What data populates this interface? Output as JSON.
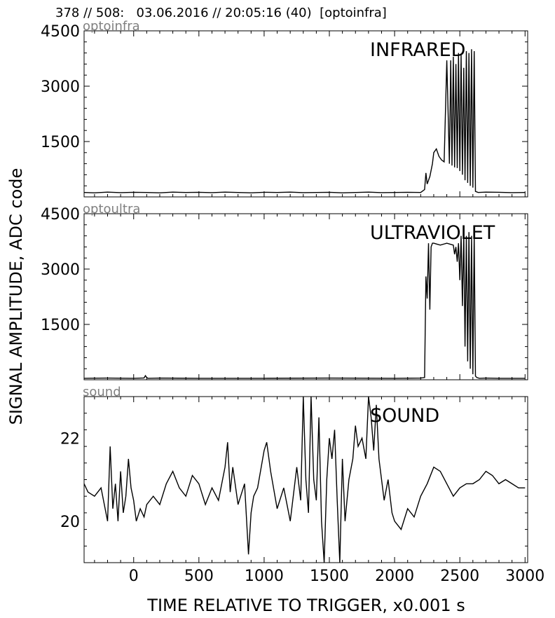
{
  "header": "378 // 508:   03.06.2016 // 20:05:16 (40)  [optoinfra]",
  "ylabel": "SIGNAL AMPLITUDE,  ADC code",
  "xlabel": "TIME RELATIVE TO TRIGGER,   x0.001 s",
  "x_ticks": [
    0,
    500,
    1000,
    1500,
    2000,
    2500,
    3000
  ],
  "chart_data": [
    {
      "type": "line",
      "corner_label": "optoinfra",
      "title": "INFRARED",
      "xlim": [
        -380,
        3020
      ],
      "ylim": [
        0,
        4500
      ],
      "yticks": [
        1500,
        3000,
        4500
      ],
      "x": [
        -380,
        -300,
        -200,
        -100,
        0,
        100,
        200,
        300,
        400,
        500,
        600,
        700,
        800,
        900,
        1000,
        1100,
        1200,
        1300,
        1400,
        1500,
        1600,
        1700,
        1800,
        1900,
        2000,
        2100,
        2200,
        2230,
        2240,
        2250,
        2270,
        2290,
        2300,
        2320,
        2340,
        2360,
        2380,
        2400,
        2420,
        2430,
        2440,
        2450,
        2460,
        2470,
        2480,
        2490,
        2500,
        2510,
        2520,
        2530,
        2540,
        2550,
        2560,
        2570,
        2580,
        2590,
        2600,
        2610,
        2620,
        2640,
        2700,
        2800,
        2900,
        3000
      ],
      "values": [
        120,
        110,
        130,
        115,
        125,
        120,
        110,
        130,
        120,
        125,
        115,
        130,
        120,
        110,
        125,
        120,
        130,
        115,
        120,
        125,
        110,
        120,
        130,
        115,
        120,
        125,
        120,
        200,
        650,
        350,
        550,
        900,
        1200,
        1300,
        1100,
        1000,
        950,
        3700,
        900,
        3700,
        850,
        3800,
        800,
        3600,
        780,
        3900,
        700,
        3850,
        600,
        3500,
        450,
        3950,
        380,
        3900,
        300,
        4000,
        250,
        3950,
        150,
        120,
        130,
        125,
        115,
        120
      ]
    },
    {
      "type": "line",
      "corner_label": "optoultra",
      "title": "ULTRAVIOLET",
      "xlim": [
        -380,
        3020
      ],
      "ylim": [
        0,
        4500
      ],
      "yticks": [
        1500,
        3000,
        4500
      ],
      "x": [
        -380,
        -200,
        0,
        80,
        90,
        100,
        110,
        200,
        500,
        1000,
        1500,
        2000,
        2200,
        2230,
        2240,
        2250,
        2260,
        2270,
        2280,
        2290,
        2300,
        2320,
        2350,
        2400,
        2450,
        2460,
        2470,
        2480,
        2490,
        2500,
        2510,
        2520,
        2530,
        2540,
        2550,
        2560,
        2570,
        2580,
        2590,
        2600,
        2610,
        2620,
        2630,
        2650,
        2700,
        2800,
        3000
      ],
      "values": [
        40,
        45,
        40,
        50,
        110,
        60,
        40,
        45,
        40,
        40,
        45,
        40,
        45,
        60,
        2800,
        2200,
        3700,
        1900,
        3600,
        3700,
        3700,
        3680,
        3650,
        3700,
        3650,
        3400,
        3600,
        3200,
        3700,
        2700,
        3900,
        2000,
        3950,
        900,
        3900,
        500,
        4000,
        300,
        3900,
        150,
        3950,
        100,
        60,
        40,
        45,
        40,
        40
      ]
    },
    {
      "type": "line",
      "corner_label": "sound",
      "title": "SOUND",
      "xlim": [
        -380,
        3020
      ],
      "ylim": [
        19,
        23
      ],
      "yticks": [
        20,
        22
      ],
      "x": [
        -380,
        -350,
        -300,
        -250,
        -200,
        -180,
        -160,
        -140,
        -120,
        -100,
        -80,
        -60,
        -40,
        -20,
        0,
        20,
        50,
        80,
        100,
        150,
        200,
        250,
        300,
        350,
        400,
        450,
        500,
        550,
        600,
        650,
        700,
        720,
        740,
        760,
        800,
        850,
        880,
        900,
        920,
        950,
        1000,
        1020,
        1050,
        1100,
        1150,
        1200,
        1250,
        1280,
        1300,
        1320,
        1340,
        1360,
        1380,
        1400,
        1420,
        1440,
        1460,
        1480,
        1500,
        1520,
        1540,
        1560,
        1580,
        1600,
        1620,
        1650,
        1680,
        1700,
        1720,
        1750,
        1780,
        1800,
        1820,
        1840,
        1860,
        1880,
        1900,
        1920,
        1950,
        1980,
        2000,
        2050,
        2100,
        2150,
        2200,
        2250,
        2300,
        2350,
        2400,
        2450,
        2500,
        2550,
        2600,
        2650,
        2700,
        2750,
        2800,
        2850,
        2900,
        2950,
        3000
      ],
      "values": [
        20.9,
        20.7,
        20.6,
        20.8,
        20.0,
        21.8,
        20.3,
        20.9,
        20.0,
        21.2,
        20.2,
        20.6,
        21.5,
        20.8,
        20.5,
        20.0,
        20.3,
        20.1,
        20.4,
        20.6,
        20.4,
        20.9,
        21.2,
        20.8,
        20.6,
        21.1,
        20.9,
        20.4,
        20.8,
        20.5,
        21.3,
        21.9,
        20.7,
        21.3,
        20.4,
        20.9,
        19.2,
        20.2,
        20.6,
        20.8,
        21.7,
        21.9,
        21.2,
        20.3,
        20.8,
        20.0,
        21.3,
        20.5,
        23.0,
        21.0,
        20.2,
        23.0,
        21.0,
        20.5,
        22.5,
        20.0,
        19.0,
        21.0,
        22.0,
        21.5,
        22.2,
        20.5,
        19.0,
        21.5,
        20.0,
        21.0,
        21.5,
        22.3,
        21.8,
        22.0,
        21.5,
        23.0,
        22.5,
        21.7,
        22.8,
        21.5,
        21.0,
        20.5,
        21.0,
        20.2,
        20.0,
        19.8,
        20.3,
        20.1,
        20.6,
        20.9,
        21.3,
        21.2,
        20.9,
        20.6,
        20.8,
        20.9,
        20.9,
        21.0,
        21.2,
        21.1,
        20.9,
        21.0,
        20.9,
        20.8,
        20.8
      ]
    }
  ]
}
